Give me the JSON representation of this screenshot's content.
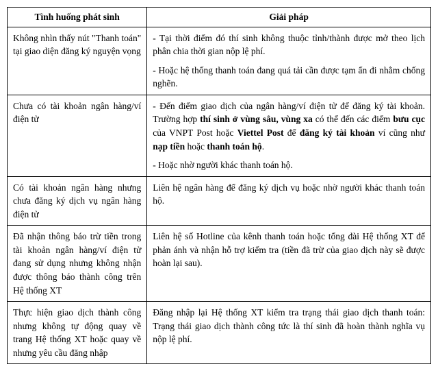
{
  "table": {
    "header_left": "Tình huống phát sinh",
    "header_right": "Giải pháp",
    "row1_left": "Không nhìn thấy nút \"Thanh toán\" tại giao diện đăng ký nguyện vọng",
    "row1_right_p1": "- Tại thời điểm đó thí sinh không thuộc tỉnh/thành được mở theo lịch phân chia thời gian nộp lệ phí.",
    "row1_right_p2": " - Hoặc hệ thống thanh toán đang quá tải cần được tạm ẩn đi nhằm chống nghẽn.",
    "row2_left": " Chưa có tài khoản ngân hàng/ví điện tử",
    "row2_right_p1_a": "- Đến điểm giao dịch của ngân hàng/ví điện tử để đăng ký tài khoản. Trường hợp ",
    "row2_right_p1_b": "thí sinh ở vùng sâu, vùng xa",
    "row2_right_p1_c": " có thể đến các điểm ",
    "row2_right_p1_d": "bưu cục",
    "row2_right_p1_e": " của VNPT Post hoặc ",
    "row2_right_p1_f": "Viettel Post",
    "row2_right_p1_g": " để ",
    "row2_right_p1_h": "đăng ký tài khoản",
    "row2_right_p1_i": " ví cũng như ",
    "row2_right_p1_j": "nạp tiền",
    "row2_right_p1_k": " hoặc ",
    "row2_right_p1_l": "thanh toán hộ",
    "row2_right_p1_m": ".",
    "row2_right_p2": "- Hoặc nhờ người khác thanh toán hộ.",
    "row3_left": " Có tài khoản ngân hàng nhưng chưa đăng ký dịch vụ ngân hàng điện tử",
    "row3_right": " Liên hệ ngân hàng để đăng ký dịch vụ hoặc nhờ người khác thanh toán hộ.",
    "row4_left": " Đã nhận thông báo trừ tiền trong tài khoản ngân hàng/ví điện tử đang sử dụng nhưng không nhận được thông báo thành công trên Hệ thống XT",
    "row4_right": " Liên hệ số Hotline của kênh thanh toán hoặc tổng đài Hệ thống XT để phản ánh và nhận hỗ trợ kiểm tra (tiền đã trừ của giao dịch này sẽ được hoàn lại sau).",
    "row5_left": "Thực hiện giao dịch thành công nhưng không tự động quay về trang Hệ thống XT hoặc quay về nhưng yêu cầu đăng nhập",
    "row5_right": "Đăng nhập lại Hệ thống XT kiểm tra trạng thái giao dịch thanh toán: Trạng thái giao dịch thành công tức là thí sinh đã hoàn thành nghĩa vụ nộp lệ phí."
  }
}
